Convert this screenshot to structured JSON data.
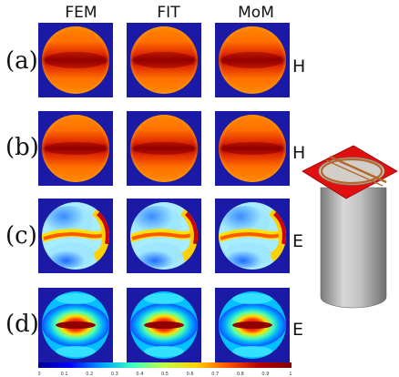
{
  "columns": [
    "FEM",
    "FIT",
    "MoM"
  ],
  "rows": [
    {
      "label": "(a)",
      "field": "H",
      "pattern": "a"
    },
    {
      "label": "(b)",
      "field": "H",
      "pattern": "b"
    },
    {
      "label": "(c)",
      "field": "E",
      "pattern": "c"
    },
    {
      "label": "(d)",
      "field": "E",
      "pattern": "d"
    }
  ],
  "colorbar": {
    "ticks": [
      "0",
      "0.1",
      "0.2",
      "0.3",
      "0.4",
      "0.5",
      "0.6",
      "0.7",
      "0.8",
      "0.9",
      "1"
    ],
    "colormap": [
      "#00008f",
      "#0000ff",
      "#00a0ff",
      "#40ffbf",
      "#c0ff40",
      "#ffcf00",
      "#ff5000",
      "#b00000",
      "#800000"
    ]
  },
  "colors": {
    "background_blue": "#1a1aa6",
    "cylinder_body": "#b8b8b8",
    "plate_red": "#e01010",
    "ring_copper": "#b4662e"
  }
}
